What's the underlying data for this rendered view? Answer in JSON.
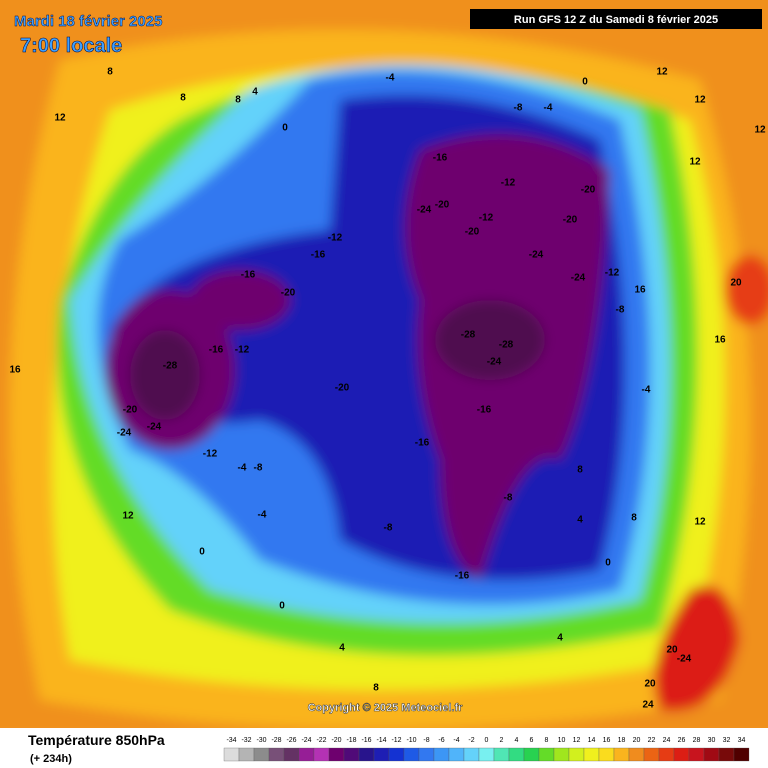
{
  "header": {
    "date": "Mardi 18 février 2025",
    "time": "7:00 locale",
    "run": "Run GFS 12 Z du Samedi 8 février 2025"
  },
  "map": {
    "labels": [
      "12",
      "8",
      "8",
      "8",
      "4",
      "0",
      "-4",
      "-8",
      "-4",
      "0",
      "12",
      "12",
      "12",
      "-16",
      "-12",
      "-20",
      "-20",
      "-24",
      "-20",
      "-12",
      "-20",
      "-24",
      "-24",
      "-12",
      "-28",
      "-28",
      "-24",
      "-16",
      "-16",
      "-8",
      "-16",
      "-8",
      "-4",
      "0",
      "4",
      "8",
      "12",
      "16",
      "20",
      "20",
      "-24",
      "20",
      "24",
      "-16",
      "-20",
      "-28",
      "-20",
      "-24",
      "-24",
      "-16",
      "-12",
      "-12",
      "-8",
      "-4",
      "0",
      "4",
      "8",
      "12",
      "16",
      "12",
      "16",
      "0",
      "4",
      "8",
      "-4",
      "-8",
      "-12",
      "-16",
      "-20"
    ]
  },
  "footer": {
    "title": "Température 850hPa",
    "lead": "(+ 234h)",
    "copyright": "Copyright © 2025 Meteociel.fr"
  },
  "legend": {
    "values": [
      -34,
      -32,
      -30,
      -28,
      -26,
      -24,
      -22,
      -20,
      -18,
      -16,
      -14,
      -12,
      -10,
      -8,
      -6,
      -4,
      -2,
      0,
      2,
      4,
      6,
      8,
      10,
      12,
      14,
      16,
      18,
      20,
      22,
      24,
      26,
      28,
      30,
      32,
      34
    ],
    "colors": [
      "#dcdcdc",
      "#b4b4b4",
      "#8c8c8c",
      "#785078",
      "#643264",
      "#961e96",
      "#b432b4",
      "#6e006e",
      "#500a78",
      "#28148c",
      "#1e1eb4",
      "#1432d2",
      "#1e5ae6",
      "#3278f0",
      "#3c96f5",
      "#50b4fa",
      "#64d2fa",
      "#78f0f0",
      "#50e6b4",
      "#32dc82",
      "#28d250",
      "#64dc28",
      "#a0e61e",
      "#d2f01e",
      "#f0f01e",
      "#fadc1e",
      "#fab41e",
      "#f08c1e",
      "#eb6414",
      "#e63c14",
      "#dc1e14",
      "#c8141e",
      "#a00a14",
      "#780a0a",
      "#500000"
    ]
  }
}
